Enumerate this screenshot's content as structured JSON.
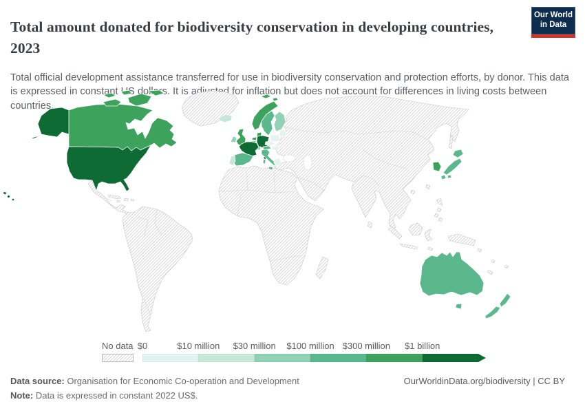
{
  "header": {
    "title": "Total amount donated for biodiversity conservation in developing countries, 2023",
    "subtitle": "Total official development assistance transferred for use in biodiversity conservation and protection efforts, by donor. This data is expressed in constant US dollars. It is adjusted for inflation but does not account for differences in living costs between countries.",
    "logo": {
      "line1": "Our World",
      "line2": "in Data"
    }
  },
  "legend": {
    "no_data_label": "No data",
    "tick_labels": [
      "$0",
      "$10 million",
      "$30 million",
      "$100 million",
      "$300 million",
      "$1 billion"
    ],
    "bin_colors": [
      "#e3f3ef",
      "#c7e8d9",
      "#92d1b5",
      "#5bb88d",
      "#3ca25c",
      "#0d6b33"
    ],
    "hatch_line_color": "#d8d8d8"
  },
  "footer": {
    "source_label": "Data source:",
    "source_text": " Organisation for Economic Co-operation and Development",
    "note_label": "Note:",
    "note_text": " Data is expressed in constant 2022 US$.",
    "credit": "OurWorldinData.org/biodiversity | CC BY"
  },
  "map_bins": {
    "united-states": 5,
    "canada": 4,
    "france": 5,
    "germany": 5,
    "united-kingdom": 4,
    "norway": 4,
    "netherlands": 4,
    "belgium": 4,
    "denmark": 4,
    "sweden": 3,
    "italy": 3,
    "spain": 3,
    "austria": 3,
    "switzerland": 2,
    "finland": 2,
    "ireland": 2,
    "iceland": 1,
    "portugal": 1,
    "poland": 0,
    "czechia": 0,
    "hungary": 0,
    "greece": 0,
    "baltic-states": 0,
    "japan": 3,
    "south-korea": 4,
    "australia": 3,
    "new-zealand": 3
  },
  "chart_data": {
    "type": "choropleth",
    "title": "Total amount donated for biodiversity conservation in developing countries",
    "year": "2023",
    "unit": "constant 2022 US$",
    "legend_position": "bottom",
    "bin_ranges": [
      "$0–$10 million",
      "$10–$30 million",
      "$30–$100 million",
      "$100–$300 million",
      "$300 million–$1 billion",
      "more than $1 billion"
    ],
    "countries": [
      {
        "name": "United States",
        "bin": "more than $1 billion"
      },
      {
        "name": "France",
        "bin": "more than $1 billion"
      },
      {
        "name": "Germany",
        "bin": "more than $1 billion"
      },
      {
        "name": "Canada",
        "bin": "$300 million–$1 billion"
      },
      {
        "name": "United Kingdom",
        "bin": "$300 million–$1 billion"
      },
      {
        "name": "Norway",
        "bin": "$300 million–$1 billion"
      },
      {
        "name": "Netherlands",
        "bin": "$300 million–$1 billion"
      },
      {
        "name": "Belgium",
        "bin": "$300 million–$1 billion"
      },
      {
        "name": "Denmark",
        "bin": "$300 million–$1 billion"
      },
      {
        "name": "South Korea",
        "bin": "$300 million–$1 billion"
      },
      {
        "name": "Sweden",
        "bin": "$100–$300 million"
      },
      {
        "name": "Italy",
        "bin": "$100–$300 million"
      },
      {
        "name": "Spain",
        "bin": "$100–$300 million"
      },
      {
        "name": "Austria",
        "bin": "$100–$300 million"
      },
      {
        "name": "Japan",
        "bin": "$100–$300 million"
      },
      {
        "name": "Australia",
        "bin": "$100–$300 million"
      },
      {
        "name": "New Zealand",
        "bin": "$100–$300 million"
      },
      {
        "name": "Switzerland",
        "bin": "$30–$100 million"
      },
      {
        "name": "Finland",
        "bin": "$30–$100 million"
      },
      {
        "name": "Ireland",
        "bin": "$30–$100 million"
      },
      {
        "name": "Iceland",
        "bin": "$10–$30 million"
      },
      {
        "name": "Portugal",
        "bin": "$10–$30 million"
      },
      {
        "name": "Poland",
        "bin": "$0–$10 million"
      },
      {
        "name": "Czechia",
        "bin": "$0–$10 million"
      },
      {
        "name": "Hungary",
        "bin": "$0–$10 million"
      },
      {
        "name": "Greece",
        "bin": "$0–$10 million"
      },
      {
        "name": "Baltic states",
        "bin": "$0–$10 million"
      }
    ],
    "no_data": "All other countries shown hatched (No data)"
  }
}
